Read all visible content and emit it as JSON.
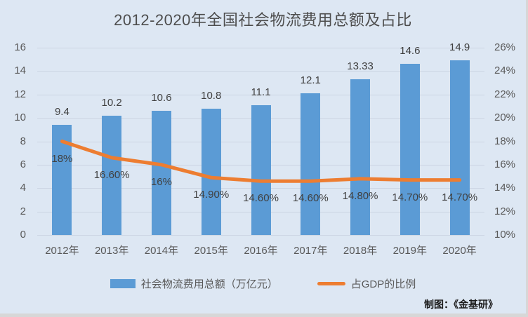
{
  "title": "2012-2020年全国社会物流费用总额及占比",
  "credit": "制图：《金基研》",
  "colors": {
    "bar": "#5b9bd5",
    "line": "#ed7d31",
    "background": "#dde7f3",
    "gridline": "#ccd5e3",
    "axis_text": "#595959",
    "label_text": "#404040",
    "edge": "#d7d7d7",
    "title_text": "#4d4d4d",
    "credit_text": "#1a1a1a"
  },
  "chart_data": {
    "type": "bar+line combo",
    "title": "2012-2020年全国社会物流费用总额及占比",
    "categories": [
      "2012年",
      "2013年",
      "2014年",
      "2015年",
      "2016年",
      "2017年",
      "2018年",
      "2019年",
      "2020年"
    ],
    "series": [
      {
        "name": "社会物流费用总额（万亿元）",
        "type": "bar",
        "axis": "left",
        "values": [
          9.4,
          10.2,
          10.6,
          10.8,
          11.1,
          12.1,
          13.33,
          14.6,
          14.9
        ],
        "labels": [
          "9.4",
          "10.2",
          "10.6",
          "10.8",
          "11.1",
          "12.1",
          "13.33",
          "14.6",
          "14.9"
        ]
      },
      {
        "name": "占GDP的比例",
        "type": "line",
        "axis": "right",
        "values": [
          18,
          16.6,
          16,
          14.9,
          14.6,
          14.6,
          14.8,
          14.7,
          14.7
        ],
        "labels": [
          "18%",
          "16.60%",
          "16%",
          "14.90%",
          "14.60%",
          "14.60%",
          "14.80%",
          "14.70%",
          "14.70%"
        ]
      }
    ],
    "left_axis": {
      "min": 0,
      "max": 16,
      "step": 2,
      "ticks": [
        "0",
        "2",
        "4",
        "6",
        "8",
        "10",
        "12",
        "14",
        "16"
      ]
    },
    "right_axis": {
      "min": 10,
      "max": 26,
      "step": 2,
      "ticks": [
        "10%",
        "12%",
        "14%",
        "16%",
        "18%",
        "20%",
        "22%",
        "24%",
        "26%"
      ]
    },
    "grid": true,
    "legend_position": "bottom"
  }
}
